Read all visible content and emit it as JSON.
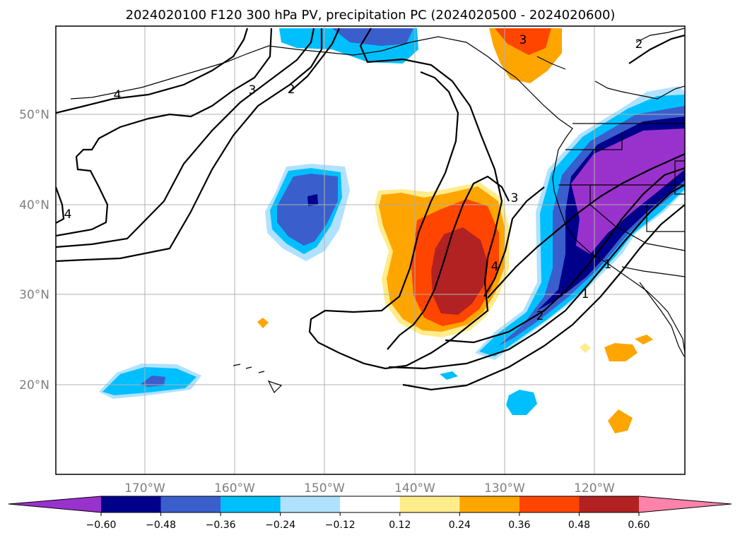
{
  "title": "2024020100 F120 300 hPa PV, precipitation PC (2024020500 - 2024020600)",
  "map": {
    "lat_labels": [
      "50°N",
      "40°N",
      "30°N",
      "20°N"
    ],
    "lon_labels": [
      "170°W",
      "160°W",
      "150°W",
      "140°W",
      "130°W",
      "120°W"
    ],
    "gridlines": true
  },
  "pv_contour_labels": [
    "4",
    "3",
    "2",
    "4",
    "3",
    "4",
    "2",
    "1",
    "1",
    "3",
    "2"
  ],
  "colorbar": {
    "ticks": [
      "−0.60",
      "−0.48",
      "−0.36",
      "−0.24",
      "−0.12",
      "0.12",
      "0.24",
      "0.36",
      "0.48",
      "0.60"
    ],
    "colors": [
      "#9932cc",
      "#00008b",
      "#3a5fcd",
      "#00bfff",
      "#b0e2ff",
      "#ffffff",
      "#ffec8b",
      "#ffa500",
      "#ff4500",
      "#b22222",
      "#ff82ab"
    ],
    "extend": "both"
  }
}
